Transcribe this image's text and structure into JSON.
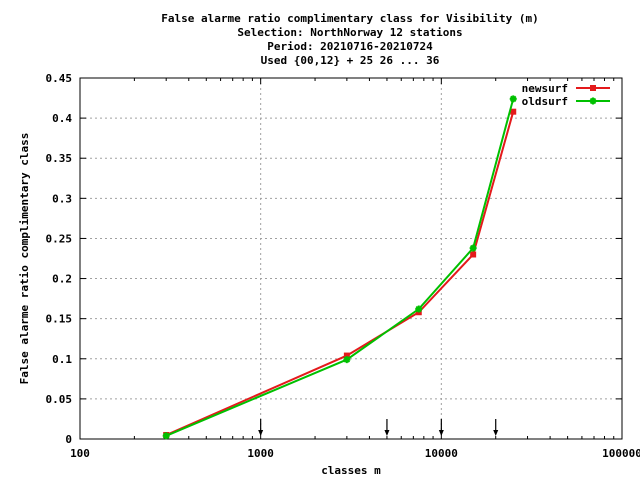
{
  "chart_data": {
    "type": "line",
    "title_lines": [
      "False alarme ratio complimentary class  for Visibility (m)",
      "Selection: NorthNorway     12 stations",
      "Period: 20210716-20210724",
      "Used {00,12} + 25 26 ... 36"
    ],
    "xlabel": "classes m",
    "ylabel": "False alarme ratio complimentary class",
    "x_scale": "log",
    "xlim": [
      100,
      100000
    ],
    "ylim": [
      0,
      0.45
    ],
    "x_ticks": [
      100,
      1000,
      10000,
      100000
    ],
    "x_tick_labels": [
      "100",
      "1000",
      "10000",
      "100000"
    ],
    "y_ticks": [
      0,
      0.05,
      0.1,
      0.15,
      0.2,
      0.25,
      0.3,
      0.35,
      0.4,
      0.45
    ],
    "y_tick_labels": [
      "0",
      "0.05",
      "0.1",
      "0.15",
      "0.2",
      "0.25",
      "0.3",
      "0.35",
      "0.4",
      "0.45"
    ],
    "grid": true,
    "legend_position": "top-right",
    "class_markers": [
      1000,
      5000,
      10000,
      20000
    ],
    "series": [
      {
        "name": "newsurf",
        "color": "#e41a1c",
        "x": [
          300,
          3000,
          7500,
          15000,
          25000
        ],
        "y": [
          0.005,
          0.104,
          0.158,
          0.23,
          0.408
        ]
      },
      {
        "name": "oldsurf",
        "color": "#00c000",
        "x": [
          300,
          3000,
          7500,
          15000,
          25000
        ],
        "y": [
          0.004,
          0.099,
          0.162,
          0.238,
          0.424
        ]
      }
    ]
  }
}
